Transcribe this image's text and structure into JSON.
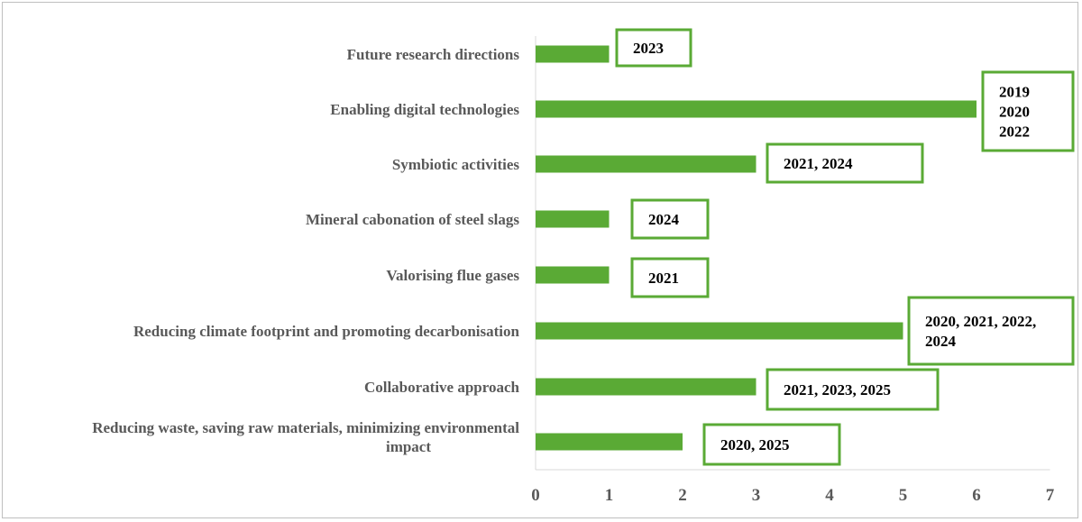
{
  "chart_data": {
    "type": "bar",
    "orientation": "horizontal",
    "title": "",
    "xlabel": "",
    "ylabel": "",
    "xlim": [
      0,
      7
    ],
    "xticks": [
      0,
      1,
      2,
      3,
      4,
      5,
      6,
      7
    ],
    "grid": false,
    "legend": "none",
    "bar_color": "#5aaa35",
    "annotation_border_color": "#5aaa35",
    "categories": [
      "Future research directions",
      "Enabling digital technologies",
      "Symbiotic activities",
      "Mineral cabonation of steel slags",
      "Valorising flue gases",
      "Reducing climate footprint and promoting decarbonisation",
      "Collaborative approach",
      "Reducing waste, saving raw materials, minimizing environmental impact"
    ],
    "values": [
      1,
      6,
      3,
      1,
      1,
      5,
      3,
      2
    ],
    "annotations": [
      [
        "2023"
      ],
      [
        "2019",
        "2020",
        "2022"
      ],
      [
        "2021, 2024"
      ],
      [
        "2024"
      ],
      [
        "2021"
      ],
      [
        "2020, 2021, 2022,",
        " 2024"
      ],
      [
        "2021, 2023, 2025"
      ],
      [
        "2020, 2025"
      ]
    ]
  }
}
